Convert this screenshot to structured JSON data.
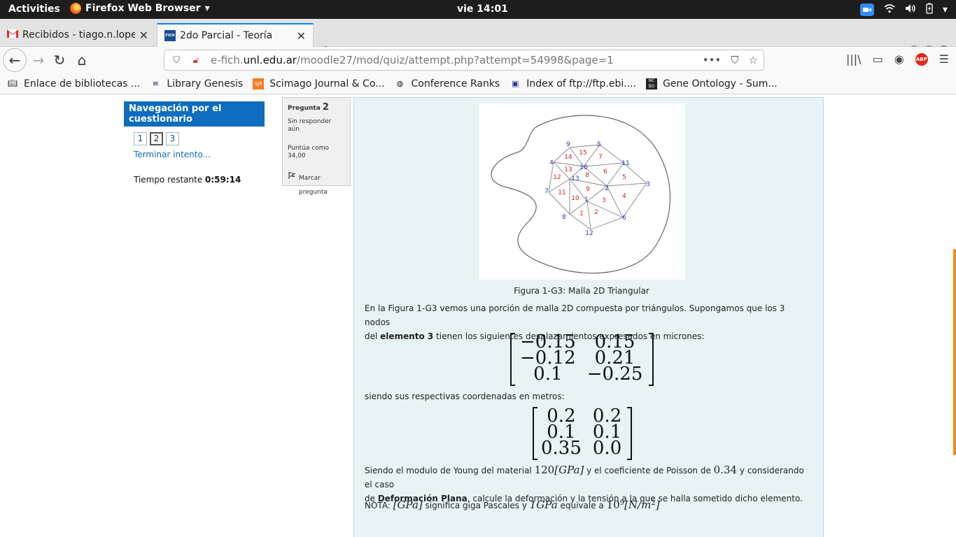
{
  "topbar": {
    "activities": "Activities",
    "app": "Firefox Web Browser",
    "clock": "vie 14:01"
  },
  "tabs": [
    {
      "title": "Recibidos - tiago.n.lopez",
      "active": false
    },
    {
      "title": "2do Parcial - Teoría",
      "active": true
    }
  ],
  "address": {
    "prefix": "e-fich.",
    "domain": "unl.edu.ar",
    "path": "/moodle27/mod/quiz/attempt.php?attempt=54998&page=1"
  },
  "bookmarks": [
    {
      "label": "Enlace de bibliotecas ..."
    },
    {
      "label": "Library Genesis"
    },
    {
      "label": "Scimago Journal & Co..."
    },
    {
      "label": "Conference Ranks"
    },
    {
      "label": "Index of ftp://ftp.ebi...."
    },
    {
      "label": "Gene Ontology - Sum..."
    }
  ],
  "quiz_nav": {
    "title": "Navegación por el cuestionario",
    "questions": [
      "1",
      "2",
      "3"
    ],
    "current": "2",
    "finish": "Terminar intento...",
    "timer_label": "Tiempo restante",
    "timer_value": "0:59:14"
  },
  "question_info": {
    "label": "Pregunta",
    "number": "2",
    "status": "Sin responder aún",
    "points": "Puntúa como 34,00",
    "flag": "Marcar pregunta"
  },
  "question": {
    "figure_caption": "Figura 1-G3: Malla 2D Triangular",
    "p1a": "En la Figura 1-G3 vemos una porción de malla 2D compuesta por triángulos. Supongamos que los 3 nodos",
    "p1b_pre": "del",
    "p1b_bold": "elemento 3",
    "p1b_post": "tienen los siguientes desplazamientos expresados en micrones:",
    "displacements": [
      [
        "−0.15",
        "0.15"
      ],
      [
        "−0.12",
        "0.21"
      ],
      [
        "0.1",
        "−0.25"
      ]
    ],
    "p2": "siendo sus respectivas coordenadas en metros:",
    "coordinates": [
      [
        "0.2",
        "0.2"
      ],
      [
        "0.1",
        "0.1"
      ],
      [
        "0.35",
        "0.0"
      ]
    ],
    "p3a_pre": "Siendo el modulo de Young del material",
    "young": "120",
    "unit_gpa": "[GPa]",
    "p3a_mid": "y el coeficiente de Poisson de",
    "poisson": "0.34",
    "p3a_post": "y considerando el caso",
    "p3b_pre": "de",
    "p3b_bold": "Deformación Plana",
    "p3b_post": ", calcule la deformación y la tensión a la que se halla sometido dicho elemento.",
    "nota_pre": "NOTA:",
    "nota_mid": "significa giga Pascales y",
    "one_gpa": "1GPa",
    "nota_eq": "equivale a",
    "ten9": "10",
    "exp9": "9",
    "nm2": "[N/m",
    "exp2": "2",
    "nm2_close": "]"
  },
  "figure": {
    "node_labels": [
      "9",
      "5",
      "4",
      "10",
      "11",
      "3",
      "7",
      "13",
      "2",
      "1",
      "6",
      "8",
      "12"
    ],
    "element_labels": [
      "14",
      "15",
      "7",
      "13",
      "8",
      "6",
      "5",
      "12",
      "9",
      "11",
      "4",
      "10",
      "3",
      "1",
      "2"
    ]
  }
}
